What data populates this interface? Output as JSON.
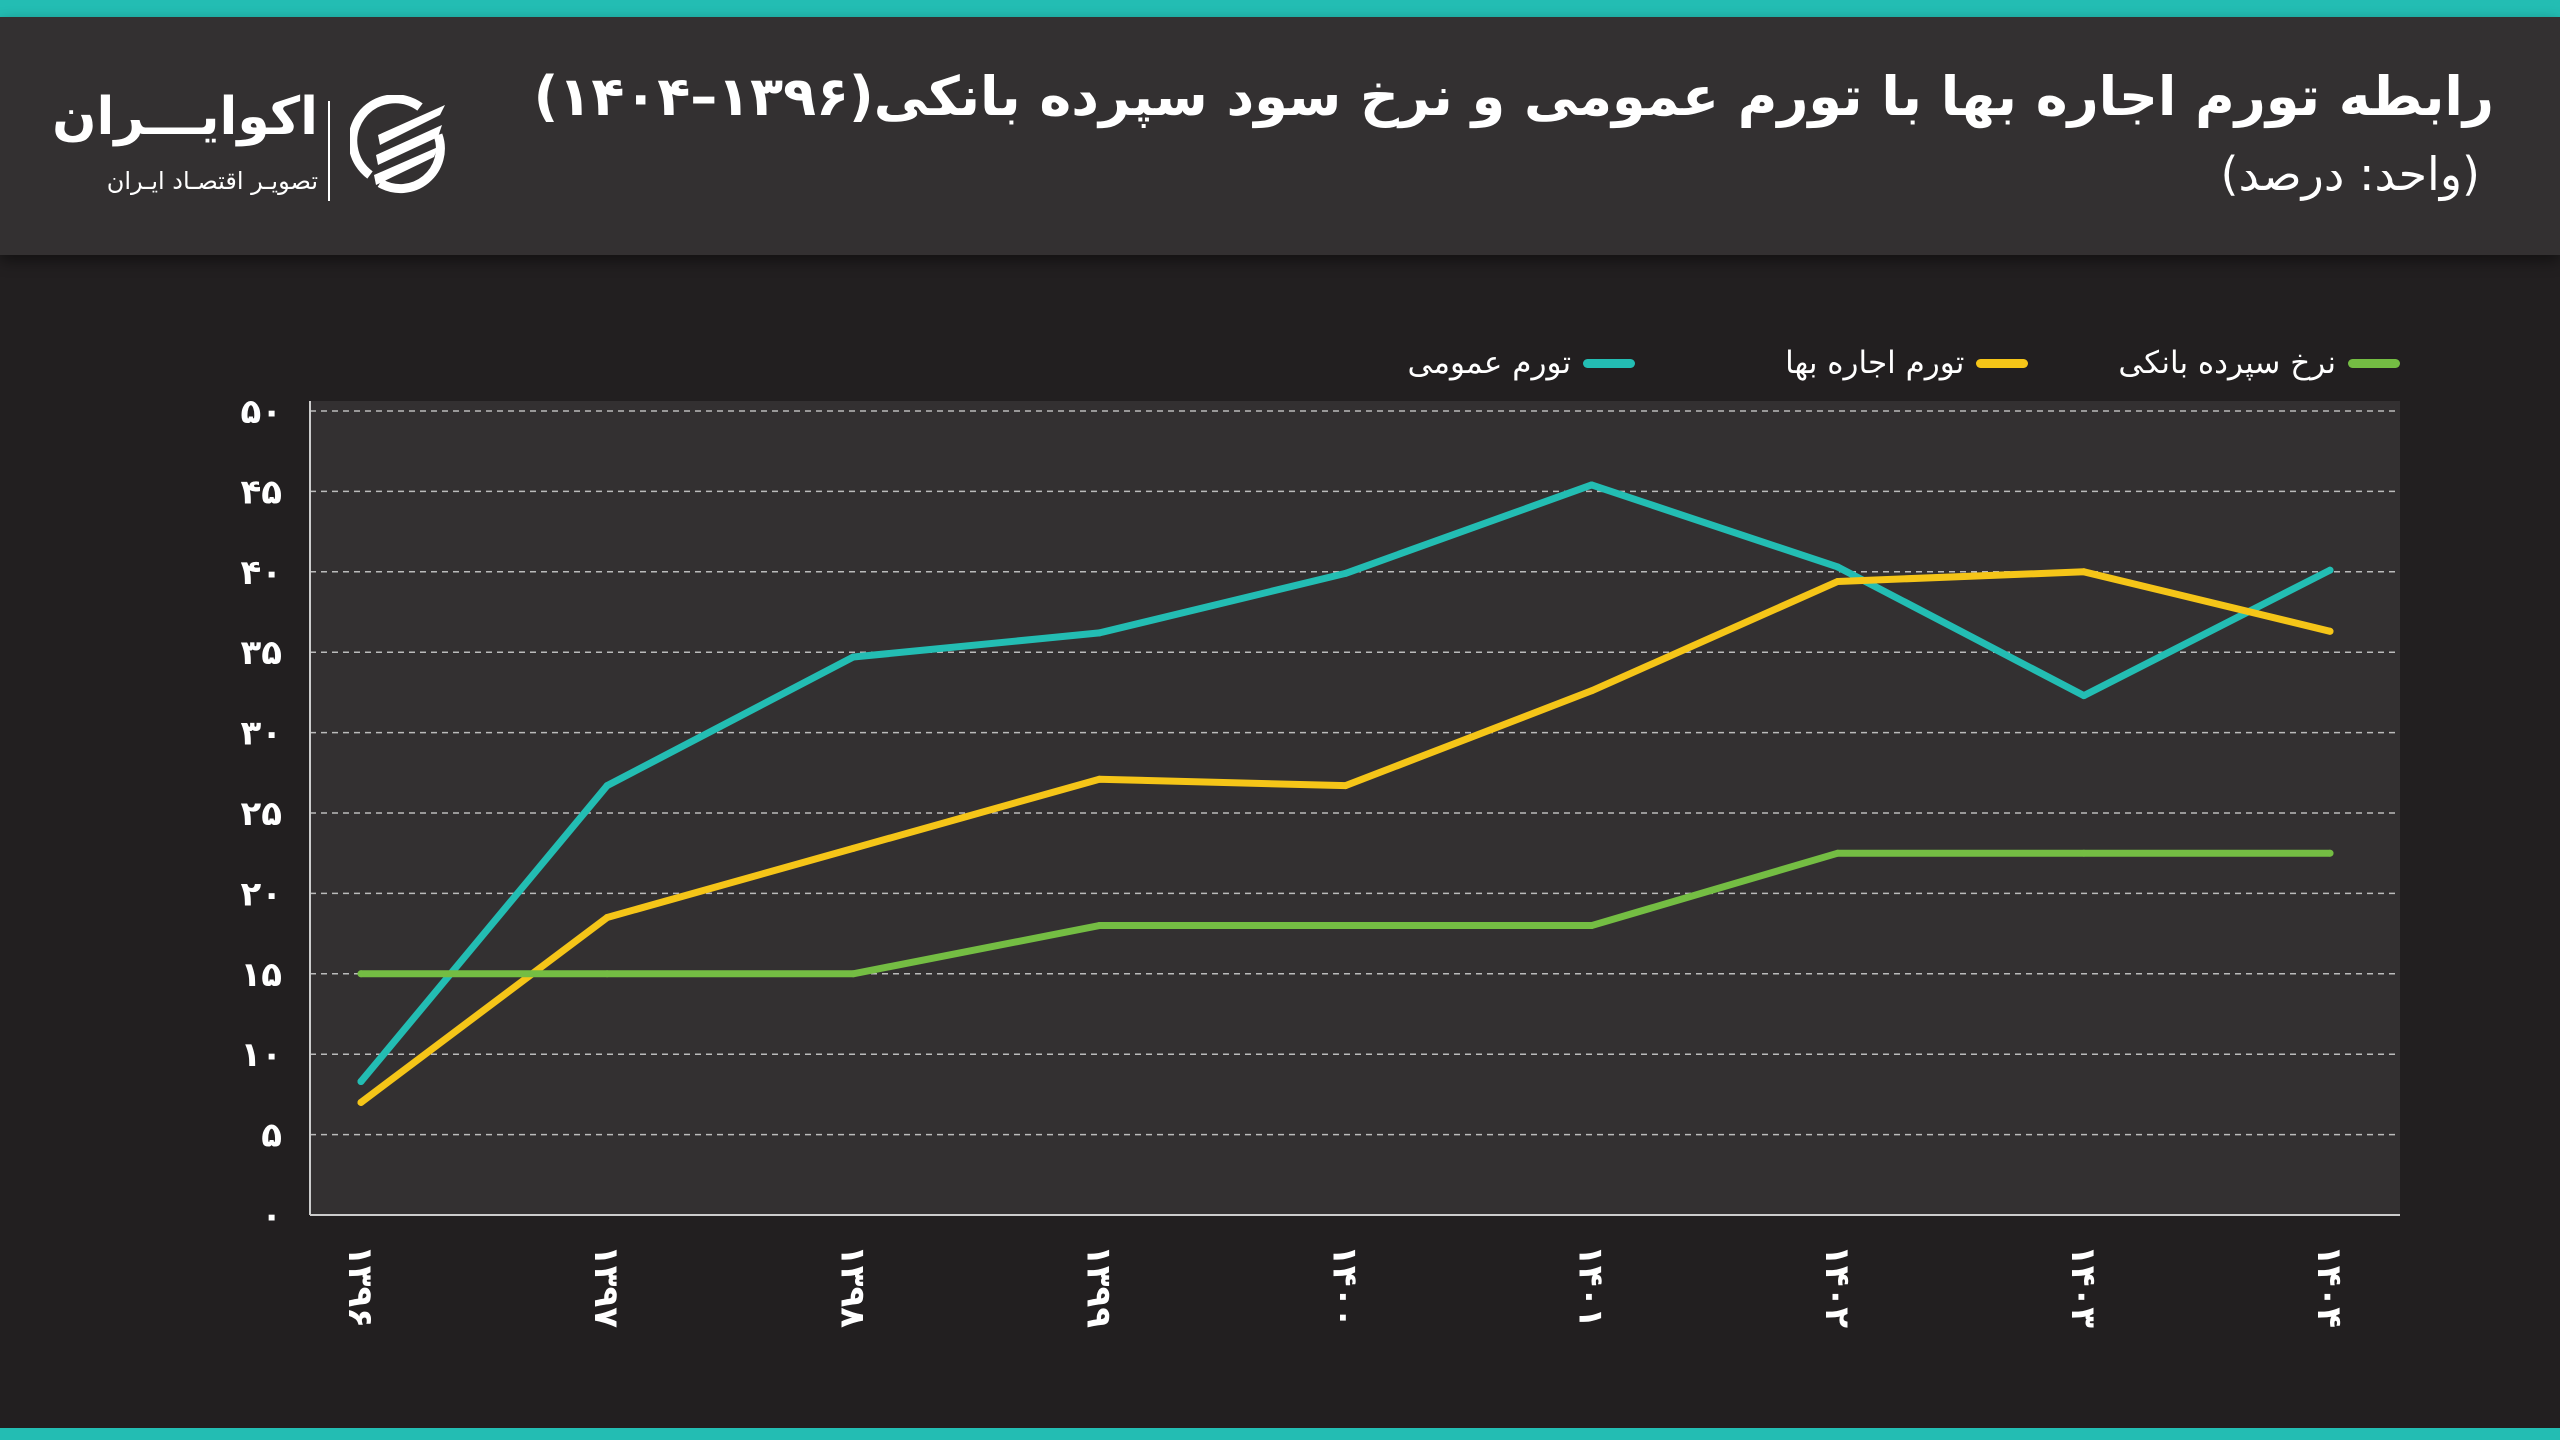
{
  "header": {
    "title": "رابطه تورم اجاره بها با تورم عمومی و نرخ سود سپرده بانکی(۱۳۹۶–۱۴۰۴)",
    "subtitle": "(واحد: درصد)"
  },
  "logo": {
    "name": "اکوایـــران",
    "tagline": "تصویـر اقتصـاد ایـران"
  },
  "colors": {
    "accent": "#23bdb3",
    "background": "#221f20",
    "panel": "#333031"
  },
  "chart_data": {
    "type": "line",
    "title": "رابطه تورم اجاره بها با تورم عمومی و نرخ سود سپرده بانکی(۱۳۹۶–۱۴۰۴)",
    "unit": "(واحد: درصد)",
    "categories": [
      "۱۳۹۶",
      "۱۳۹۷",
      "۱۳۹۸",
      "۱۳۹۹",
      "۱۴۰۰",
      "۱۴۰۱",
      "۱۴۰۲",
      "۱۴۰۳",
      "۱۴۰۴"
    ],
    "yticks": [
      "۰",
      "۵",
      "۱۰",
      "۱۵",
      "۲۰",
      "۲۵",
      "۳۰",
      "۳۵",
      "۴۰",
      "۴۵",
      "۵۰"
    ],
    "ylim": [
      0,
      50
    ],
    "grid": true,
    "legend_position": "top",
    "series": [
      {
        "name": "تورم عمومی",
        "color": "#23bdb3",
        "values": [
          8.3,
          26.7,
          34.7,
          36.2,
          39.9,
          45.4,
          40.3,
          32.3,
          40.1
        ]
      },
      {
        "name": "تورم اجاره بها",
        "color": "#f5c518",
        "values": [
          7.0,
          18.5,
          22.8,
          27.1,
          26.7,
          32.6,
          39.4,
          40.0,
          36.3
        ]
      },
      {
        "name": "نرخ سپرده بانکی",
        "color": "#74bd43",
        "values": [
          15,
          15,
          15,
          18,
          18,
          18,
          22.5,
          22.5,
          22.5
        ]
      }
    ]
  }
}
